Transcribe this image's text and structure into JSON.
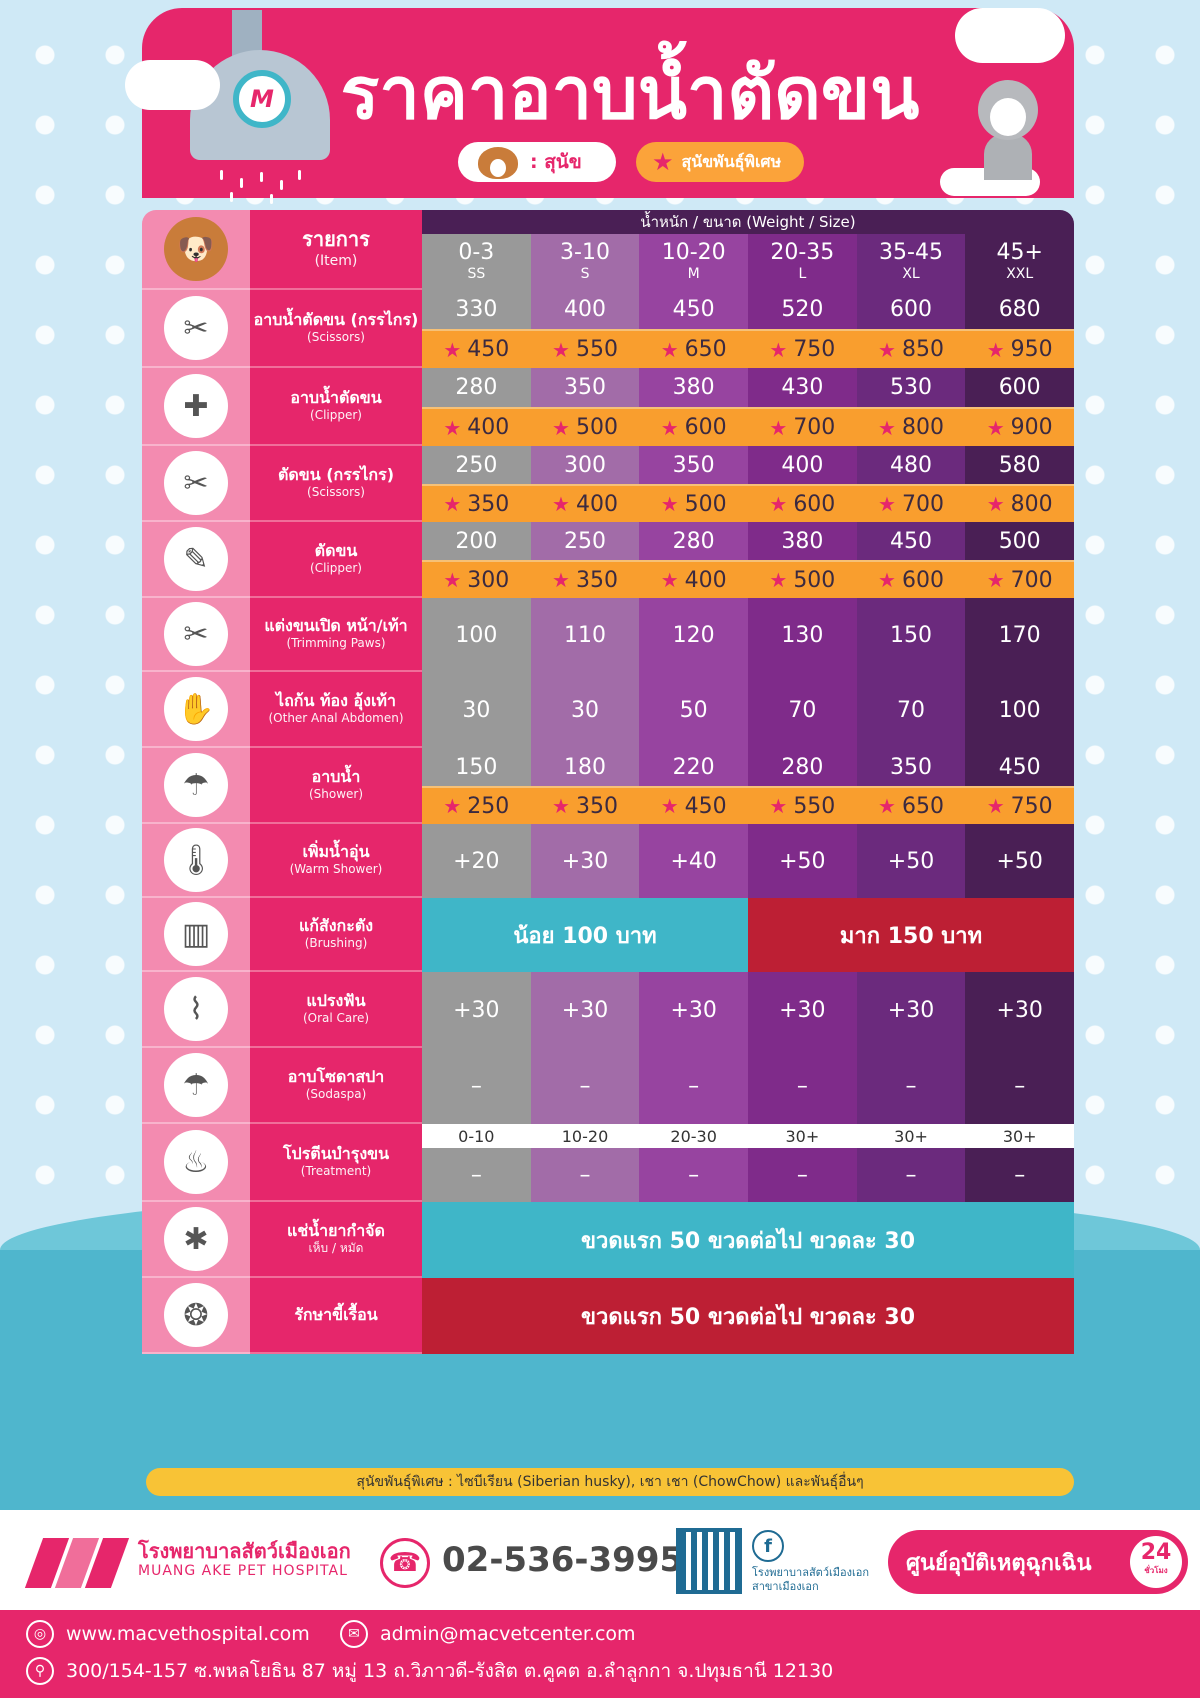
{
  "header": {
    "title": "ราคาอาบน้ำตัดขน",
    "logo_letter": "M",
    "legend_dog": ": สุนัข",
    "legend_special": "สุนัขพันธุ์พิเศษ"
  },
  "table": {
    "item_label_th": "รายการ",
    "item_label_en": "(Item)",
    "weight_title": "น้ำหนัก / ขนาด  (Weight / Size)",
    "sizes": [
      {
        "range": "0-3",
        "code": "SS"
      },
      {
        "range": "3-10",
        "code": "S"
      },
      {
        "range": "10-20",
        "code": "M"
      },
      {
        "range": "20-35",
        "code": "L"
      },
      {
        "range": "35-45",
        "code": "XL"
      },
      {
        "range": "45+",
        "code": "XXL"
      }
    ],
    "rows": [
      {
        "th": "อาบน้ำตัดขน (กรรไกร)",
        "en": "(Scissors)",
        "icon": "scissors-shower-icon",
        "prices": [
          "330",
          "400",
          "450",
          "520",
          "600",
          "680"
        ],
        "special": [
          "450",
          "550",
          "650",
          "750",
          "850",
          "950"
        ]
      },
      {
        "th": "อาบน้ำตัดขน",
        "en": "(Clipper)",
        "icon": "clipper-shower-icon",
        "prices": [
          "280",
          "350",
          "380",
          "430",
          "530",
          "600"
        ],
        "special": [
          "400",
          "500",
          "600",
          "700",
          "800",
          "900"
        ]
      },
      {
        "th": "ตัดขน (กรรไกร)",
        "en": "(Scissors)",
        "icon": "scissors-icon",
        "prices": [
          "250",
          "300",
          "350",
          "400",
          "480",
          "580"
        ],
        "special": [
          "350",
          "400",
          "500",
          "600",
          "700",
          "800"
        ]
      },
      {
        "th": "ตัดขน",
        "en": "(Clipper)",
        "icon": "clipper-icon",
        "prices": [
          "200",
          "250",
          "280",
          "380",
          "450",
          "500"
        ],
        "special": [
          "300",
          "350",
          "400",
          "500",
          "600",
          "700"
        ]
      },
      {
        "th": "แต่งขนเปิด หน้า/เท้า",
        "en": "(Trimming Paws)",
        "icon": "trimming-icon",
        "prices": [
          "100",
          "110",
          "120",
          "130",
          "150",
          "170"
        ]
      },
      {
        "th": "ไถก้น ท้อง อุ้งเท้า",
        "en": "(Other Anal Abdomen)",
        "icon": "shaving-icon",
        "prices": [
          "30",
          "30",
          "50",
          "70",
          "70",
          "100"
        ]
      },
      {
        "th": "อาบน้ำ",
        "en": "(Shower)",
        "icon": "shower-icon",
        "prices": [
          "150",
          "180",
          "220",
          "280",
          "350",
          "450"
        ],
        "special": [
          "250",
          "350",
          "450",
          "550",
          "650",
          "750"
        ]
      },
      {
        "th": "เพิ่มน้ำอุ่น",
        "en": "(Warm Shower)",
        "icon": "thermometer-icon",
        "prices": [
          "+20",
          "+30",
          "+40",
          "+50",
          "+50",
          "+50"
        ]
      },
      {
        "th": "แก้สังกะตัง",
        "en": "(Brushing)",
        "icon": "comb-icon",
        "banner_left": "น้อย 100 บาท",
        "banner_right": "มาก 150 บาท"
      },
      {
        "th": "แปรงฟัน",
        "en": "(Oral Care)",
        "icon": "toothbrush-icon",
        "prices": [
          "+30",
          "+30",
          "+30",
          "+30",
          "+30",
          "+30"
        ]
      },
      {
        "th": "อาบโซดาสปา",
        "en": "(Sodaspa)",
        "icon": "spa-shower-icon",
        "prices": [
          "–",
          "–",
          "–",
          "–",
          "–",
          "–"
        ]
      },
      {
        "th": "โปรตีนบำรุงขน",
        "en": "(Treatment)",
        "icon": "bottle-icon",
        "sub_sizes": [
          "0-10",
          "10-20",
          "20-30",
          "30+",
          "30+",
          "30+"
        ],
        "prices": [
          "–",
          "–",
          "–",
          "–",
          "–",
          "–"
        ]
      },
      {
        "th": "แช่น้ำยากำจัด",
        "en": "เห็บ / หมัด",
        "icon": "flea-spray-icon",
        "banner": "ขวดแรก 50 ขวดต่อไป ขวดละ 30"
      },
      {
        "th": "รักษาขี้เรื้อน",
        "en": "",
        "icon": "mange-icon",
        "banner": "ขวดแรก 50 ขวดต่อไป ขวดละ 30"
      }
    ]
  },
  "footnote": "สุนัขพันธุ์พิเศษ : ไซบีเรียน (Siberian husky), เชา เชา (ChowChow) และพันธุ์อื่นๆ",
  "footer": {
    "hospital_th": "โรงพยาบาลสัตว์เมืองเอก",
    "hospital_en": "MUANG AKE PET HOSPITAL",
    "phone": "02-536-3995",
    "fb_line1": "โรงพยาบาลสัตว์เมืองเอก",
    "fb_line2": "สาขาเมืองเอก",
    "emergency": "ศูนย์อุบัติเหตุฉุกเฉิน",
    "hours": "24",
    "hours_unit": "ชั่วโมง",
    "website": "www.macvethospital.com",
    "email": "admin@macvetcenter.com",
    "address": "300/154-157 ซ.พหลโยธิน 87 หมู่ 13 ถ.วิภาวดี-รังสิต ต.คูคต อ.ลำลูกกา จ.ปทุมธานี 12130"
  },
  "colors": {
    "pink": "#e6266b",
    "light_pink": "#f38bb0",
    "orange": "#f99e2e",
    "teal": "#3fb6c8",
    "red": "#bd1f34",
    "purple_dark": "#4a1f55"
  }
}
